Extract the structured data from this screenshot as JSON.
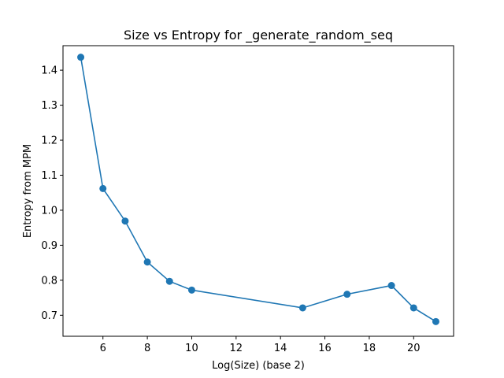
{
  "chart_data": {
    "type": "line",
    "title": "Size vs Entropy for _generate_random_seq",
    "xlabel": "Log(Size) (base 2)",
    "ylabel": "Entropy from MPM",
    "xlim": [
      4.2,
      21.8
    ],
    "ylim": [
      0.64,
      1.47
    ],
    "xticks": [
      6,
      8,
      10,
      12,
      14,
      16,
      18,
      20
    ],
    "yticks": [
      0.7,
      0.8,
      0.9,
      1.0,
      1.1,
      1.2,
      1.3,
      1.4
    ],
    "ytick_labels": [
      "0.7",
      "0.8",
      "0.9",
      "1.0",
      "1.1",
      "1.2",
      "1.3",
      "1.4"
    ],
    "grid": false,
    "color": "#1f77b4",
    "marker": "circle",
    "series": [
      {
        "x": [
          5,
          6,
          7,
          8,
          9,
          10,
          15,
          17,
          19,
          20,
          21
        ],
        "y": [
          1.437,
          1.062,
          0.969,
          0.852,
          0.797,
          0.772,
          0.721,
          0.76,
          0.785,
          0.721,
          0.682
        ]
      }
    ]
  }
}
